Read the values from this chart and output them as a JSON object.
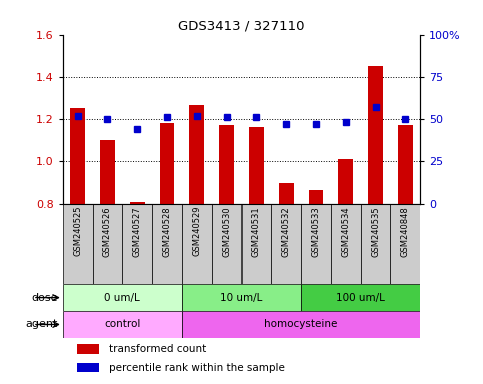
{
  "title": "GDS3413 / 327110",
  "samples": [
    "GSM240525",
    "GSM240526",
    "GSM240527",
    "GSM240528",
    "GSM240529",
    "GSM240530",
    "GSM240531",
    "GSM240532",
    "GSM240533",
    "GSM240534",
    "GSM240535",
    "GSM240848"
  ],
  "transformed_count": [
    1.25,
    1.1,
    0.805,
    1.18,
    1.265,
    1.17,
    1.16,
    0.895,
    0.865,
    1.01,
    1.45,
    1.17
  ],
  "percentile_rank": [
    52,
    50,
    44,
    51,
    52,
    51,
    51,
    47,
    47,
    48,
    57,
    50
  ],
  "bar_color": "#cc0000",
  "dot_color": "#0000cc",
  "ylim_left": [
    0.8,
    1.6
  ],
  "ylim_right": [
    0,
    100
  ],
  "yticks_left": [
    0.8,
    1.0,
    1.2,
    1.4,
    1.6
  ],
  "yticks_right": [
    0,
    25,
    50,
    75,
    100
  ],
  "ytick_labels_right": [
    "0",
    "25",
    "50",
    "75",
    "100%"
  ],
  "grid_lines": [
    1.0,
    1.2,
    1.4
  ],
  "dose_groups": [
    {
      "label": "0 um/L",
      "start": 0,
      "end": 4,
      "color": "#ccffcc"
    },
    {
      "label": "10 um/L",
      "start": 4,
      "end": 8,
      "color": "#88ee88"
    },
    {
      "label": "100 um/L",
      "start": 8,
      "end": 12,
      "color": "#44cc44"
    }
  ],
  "agent_groups": [
    {
      "label": "control",
      "start": 0,
      "end": 4,
      "color": "#ffaaff"
    },
    {
      "label": "homocysteine",
      "start": 4,
      "end": 12,
      "color": "#ee66ee"
    }
  ],
  "dose_label": "dose",
  "agent_label": "agent",
  "legend_bar_label": "transformed count",
  "legend_dot_label": "percentile rank within the sample",
  "xtick_bg": "#cccccc",
  "plot_bg": "#ffffff"
}
